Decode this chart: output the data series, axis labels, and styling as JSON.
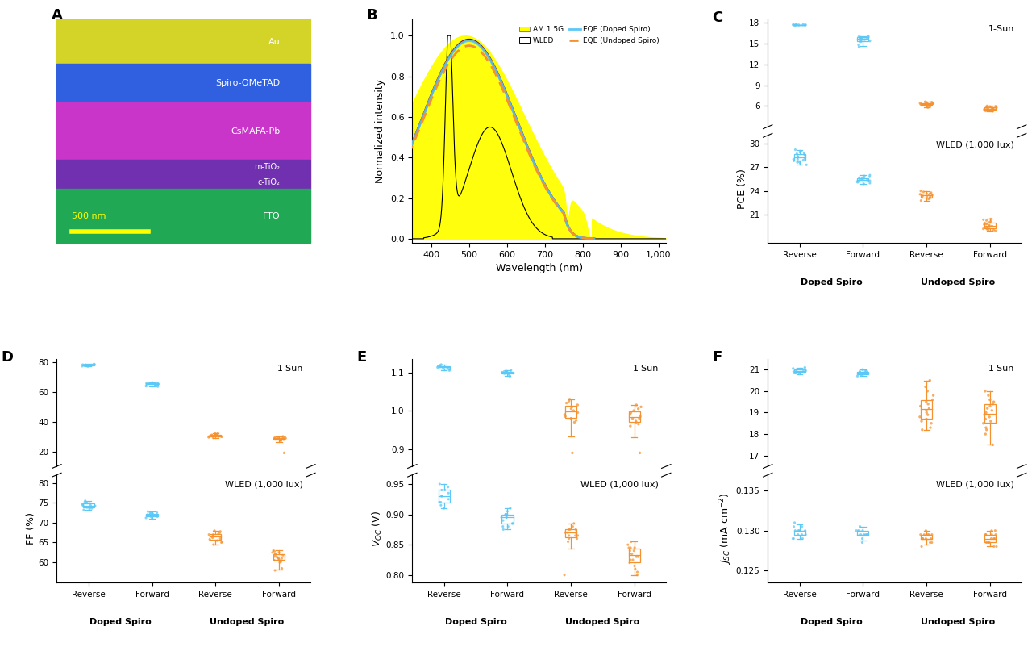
{
  "colors": {
    "blue": "#5BC8F5",
    "orange": "#F5922F"
  },
  "panel_C": {
    "sun_ylim": [
      3,
      18.5
    ],
    "sun_yticks": [
      6,
      9,
      12,
      15,
      18
    ],
    "wled_ylim": [
      17.5,
      31
    ],
    "wled_yticks": [
      21,
      24,
      27,
      30
    ],
    "ylabel": "PCE (%)",
    "sun_label": "1-Sun",
    "wled_label": "WLED (1,000 lux)",
    "sun_data": {
      "DR": [
        17.7,
        17.75,
        17.72,
        17.68,
        17.65,
        17.71,
        17.73,
        17.74,
        17.69
      ],
      "DF": [
        15.8,
        16.0,
        15.9,
        15.85,
        15.95,
        16.1,
        15.7,
        15.6,
        15.5,
        14.8,
        14.5,
        15.4,
        15.3
      ],
      "UR": [
        6.2,
        6.3,
        6.4,
        6.1,
        6.5,
        6.6,
        5.9,
        6.0,
        6.35,
        6.45,
        6.15,
        6.25,
        6.55,
        5.8
      ],
      "UF": [
        5.5,
        5.6,
        5.7,
        5.8,
        5.4,
        5.9,
        5.45,
        5.55,
        5.65,
        5.75,
        5.85,
        5.35,
        5.95,
        6.0,
        5.3,
        5.25
      ]
    },
    "wled_data": {
      "DR": [
        28.0,
        28.5,
        28.8,
        27.8,
        29.0,
        28.3,
        28.6,
        27.5,
        27.9,
        28.2,
        28.7,
        29.2,
        27.6,
        27.7,
        28.1,
        28.4,
        28.9,
        27.3,
        28.0
      ],
      "DF": [
        25.2,
        25.5,
        25.8,
        25.0,
        25.3,
        25.6,
        25.9,
        25.1,
        25.4,
        25.7,
        26.0,
        24.9,
        25.45,
        25.2,
        25.6
      ],
      "UR": [
        23.3,
        23.5,
        23.8,
        23.0,
        23.6,
        23.2,
        23.7,
        23.4,
        23.1,
        23.9,
        23.15,
        22.8,
        24.0,
        23.25,
        23.65,
        23.5
      ],
      "UF": [
        19.5,
        19.8,
        20.0,
        19.2,
        19.6,
        20.2,
        19.3,
        19.9,
        19.1,
        19.4,
        19.7,
        20.1,
        20.3,
        19.0,
        20.5,
        19.15,
        19.85,
        20.4,
        19.25,
        19.6
      ]
    }
  },
  "panel_D": {
    "sun_ylim": [
      10,
      82
    ],
    "sun_yticks": [
      20,
      40,
      60,
      80
    ],
    "wled_ylim": [
      55,
      82
    ],
    "wled_yticks": [
      60,
      65,
      70,
      75,
      80
    ],
    "ylabel": "FF (%)",
    "sun_label": "1-Sun",
    "wled_label": "WLED (1,000 lux)",
    "sun_data": {
      "DR": [
        77.0,
        78.0,
        77.5,
        78.5,
        77.8,
        78.2,
        77.2,
        77.9,
        78.1
      ],
      "DF": [
        65.0,
        65.5,
        66.0,
        64.5,
        65.8,
        66.2,
        65.2,
        63.5,
        63.8,
        64.0,
        65.6
      ],
      "UR": [
        30.0,
        31.0,
        30.5,
        31.5,
        30.8,
        31.2,
        30.2,
        29.5,
        29.8,
        31.8,
        32.0,
        29.2
      ],
      "UF": [
        28.0,
        28.5,
        29.0,
        27.5,
        28.8,
        29.2,
        27.8,
        29.5,
        28.2,
        28.6,
        27.2,
        30.0,
        19.0,
        28.4
      ]
    },
    "wled_data": {
      "DR": [
        74.0,
        74.5,
        75.0,
        73.5,
        74.8,
        75.2,
        73.8,
        74.2,
        74.6,
        73.2,
        75.5,
        74.3,
        74.9,
        73.6,
        74.1
      ],
      "DF": [
        71.5,
        72.0,
        72.5,
        71.0,
        72.2,
        71.8,
        72.8,
        71.2,
        72.5,
        71.5,
        71.7,
        72.3,
        71.9,
        72.0
      ],
      "UR": [
        66.0,
        67.0,
        67.5,
        65.5,
        66.8,
        67.2,
        66.2,
        65.8,
        67.8,
        64.5,
        68.0,
        65.0,
        66.5,
        67.0,
        65.2
      ],
      "UF": [
        61.0,
        62.0,
        61.5,
        62.5,
        61.8,
        62.2,
        61.2,
        60.5,
        60.8,
        62.8,
        63.0,
        60.2,
        58.0,
        61.5,
        62.5,
        61.0,
        60.0,
        58.5
      ]
    }
  },
  "panel_E": {
    "sun_ylim": [
      0.855,
      1.135
    ],
    "sun_yticks": [
      0.9,
      1.0,
      1.1
    ],
    "wled_ylim": [
      0.788,
      0.965
    ],
    "wled_yticks": [
      0.8,
      0.85,
      0.9,
      0.95
    ],
    "ylabel": "Voc (V)",
    "sun_label": "1-Sun",
    "wled_label": "WLED (1,000 lux)",
    "sun_data": {
      "DR": [
        1.11,
        1.12,
        1.115,
        1.105,
        1.118,
        1.108,
        1.113,
        1.11,
        1.116
      ],
      "DF": [
        1.1,
        1.105,
        1.095,
        1.1,
        1.098,
        1.102,
        1.09,
        1.103,
        1.097
      ],
      "UR": [
        1.0,
        1.01,
        0.99,
        1.02,
        0.98,
        1.03,
        0.97,
        1.005,
        0.995,
        1.015,
        1.025,
        0.985,
        0.975,
        0.89
      ],
      "UF": [
        0.98,
        0.99,
        1.0,
        0.97,
        1.01,
        0.96,
        0.975,
        0.985,
        0.995,
        1.005,
        1.015,
        0.965,
        0.89,
        0.98
      ]
    },
    "wled_data": {
      "DR": [
        0.93,
        0.94,
        0.92,
        0.95,
        0.91,
        0.935,
        0.925,
        0.945,
        0.915,
        0.93,
        0.92,
        0.94
      ],
      "DF": [
        0.895,
        0.9,
        0.885,
        0.905,
        0.88,
        0.91,
        0.875,
        0.895,
        0.9,
        0.885,
        0.9,
        0.895,
        0.88,
        0.89
      ],
      "UR": [
        0.87,
        0.875,
        0.865,
        0.88,
        0.86,
        0.885,
        0.855,
        0.87,
        0.875,
        0.865,
        0.875,
        0.86,
        0.87,
        0.8,
        0.865
      ],
      "UF": [
        0.84,
        0.845,
        0.835,
        0.85,
        0.83,
        0.855,
        0.825,
        0.84,
        0.845,
        0.835,
        0.845,
        0.83,
        0.825,
        0.82,
        0.815,
        0.8,
        0.81,
        0.805
      ]
    }
  },
  "panel_F": {
    "sun_ylim": [
      16.5,
      21.5
    ],
    "sun_yticks": [
      17,
      18,
      19,
      20,
      21
    ],
    "wled_ylim": [
      0.1235,
      0.137
    ],
    "wled_yticks": [
      0.125,
      0.13,
      0.135
    ],
    "ylabel": "Jsc",
    "sun_label": "1-Sun",
    "wled_label": "WLED (1,000 lux)",
    "sun_data": {
      "DR": [
        20.8,
        21.0,
        20.9,
        21.1,
        20.85,
        20.95,
        21.05,
        21.0,
        20.9
      ],
      "DF": [
        20.7,
        20.9,
        20.8,
        21.0,
        20.75,
        20.85,
        20.95,
        20.8,
        20.9
      ],
      "UR": [
        19.2,
        19.5,
        18.8,
        20.0,
        18.5,
        19.8,
        18.2,
        19.0,
        19.3,
        18.6,
        20.2,
        18.9,
        19.6,
        19.1,
        18.7,
        20.5,
        18.3,
        19.4
      ],
      "UF": [
        18.8,
        19.0,
        19.2,
        18.5,
        19.5,
        18.2,
        19.8,
        18.0,
        19.3,
        18.7,
        18.9,
        19.1,
        18.3,
        20.0,
        19.6,
        17.5,
        18.6,
        19.4
      ]
    },
    "wled_data": {
      "DR": [
        0.1295,
        0.13,
        0.1305,
        0.129,
        0.13,
        0.1295,
        0.131,
        0.129,
        0.13,
        0.1305,
        0.1295,
        0.129,
        0.13
      ],
      "DF": [
        0.1295,
        0.13,
        0.1285,
        0.1305,
        0.1295,
        0.13,
        0.1295,
        0.1295,
        0.13,
        0.129,
        0.1295,
        0.13
      ],
      "UR": [
        0.129,
        0.1295,
        0.1285,
        0.13,
        0.128,
        0.1295,
        0.129,
        0.1295,
        0.129,
        0.1285,
        0.1295,
        0.129,
        0.1295
      ],
      "UF": [
        0.129,
        0.1295,
        0.1285,
        0.13,
        0.128,
        0.1295,
        0.129,
        0.1295,
        0.1285,
        0.129,
        0.1295,
        0.128,
        0.13,
        0.1285
      ]
    }
  }
}
